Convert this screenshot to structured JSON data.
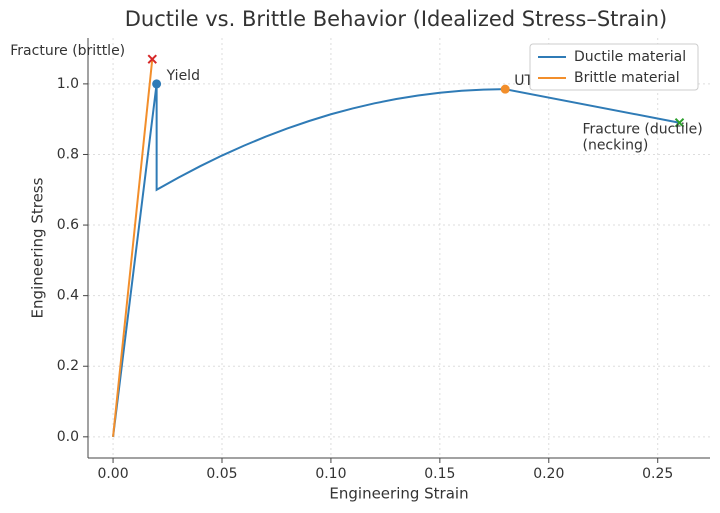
{
  "chart_data": {
    "type": "line",
    "title": "Ductile vs. Brittle Behavior (Idealized Stress–Strain)",
    "xlabel": "Engineering Strain",
    "ylabel": "Engineering Stress",
    "series": [
      {
        "name": "Ductile material",
        "color": "#2f7bb6",
        "x": [
          0,
          0.02,
          0.02,
          0.03,
          0.04,
          0.05,
          0.06,
          0.07,
          0.08,
          0.09,
          0.1,
          0.11,
          0.12,
          0.13,
          0.14,
          0.15,
          0.16,
          0.17,
          0.18,
          0.26
        ],
        "values": [
          0,
          1.0,
          0.7,
          0.7345,
          0.7668,
          0.797,
          0.8247,
          0.8503,
          0.8737,
          0.8948,
          0.914,
          0.9305,
          0.9449,
          0.9572,
          0.9672,
          0.975,
          0.9805,
          0.9839,
          0.985,
          0.89
        ]
      },
      {
        "name": "Brittle material",
        "color": "#f28e2b",
        "x": [
          0,
          0.018
        ],
        "values": [
          0,
          1.07
        ]
      }
    ],
    "annotations": [
      {
        "text": [
          "Fracture (brittle)"
        ],
        "x": 0.018,
        "y": 1.07,
        "color": "#d62728",
        "marker": "x"
      },
      {
        "text": [
          "Yield"
        ],
        "x": 0.02,
        "y": 1.0,
        "color": "#2f7bb6",
        "marker": "o"
      },
      {
        "text": [
          "UTS"
        ],
        "x": 0.18,
        "y": 0.985,
        "color": "#f28e2b",
        "marker": "o"
      },
      {
        "text": [
          "Fracture (ductile)",
          "(necking)"
        ],
        "x": 0.26,
        "y": 0.89,
        "color": "#2ca02c",
        "marker": "x"
      }
    ],
    "xlim": [
      -0.0115,
      0.274
    ],
    "ylim": [
      -0.06,
      1.13
    ],
    "xticks": [
      {
        "value": 0,
        "label": "0.00"
      },
      {
        "value": 0.05,
        "label": "0.05"
      },
      {
        "value": 0.1,
        "label": "0.10"
      },
      {
        "value": 0.15,
        "label": "0.15"
      },
      {
        "value": 0.2,
        "label": "0.20"
      },
      {
        "value": 0.25,
        "label": "0.25"
      }
    ],
    "yticks": [
      {
        "value": 0,
        "label": "0.0"
      },
      {
        "value": 0.2,
        "label": "0.2"
      },
      {
        "value": 0.4,
        "label": "0.4"
      },
      {
        "value": 0.6,
        "label": "0.6"
      },
      {
        "value": 0.8,
        "label": "0.8"
      },
      {
        "value": 1.0,
        "label": "1.0"
      }
    ],
    "grid": true,
    "legend": "upper right"
  }
}
